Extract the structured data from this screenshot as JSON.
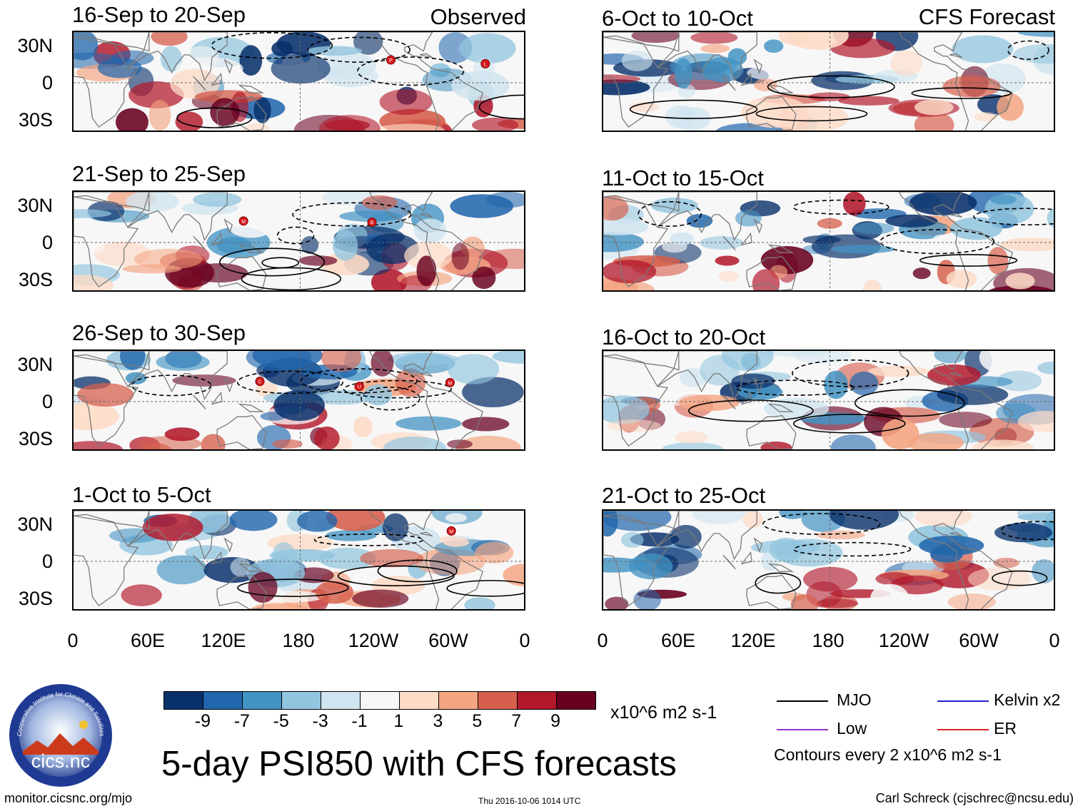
{
  "column_labels": {
    "observed": "Observed",
    "forecast": "CFS Forecast"
  },
  "observed_panels": [
    {
      "title": "16-Sep to 20-Sep",
      "cyclones": [
        {
          "letter": "P",
          "lon": -108,
          "lat": 18
        },
        {
          "letter": "L",
          "lon": -33,
          "lat": 15
        }
      ]
    },
    {
      "title": "21-Sep to 25-Sep",
      "cyclones": [
        {
          "letter": "M",
          "lon": 135,
          "lat": 17
        },
        {
          "letter": "R",
          "lon": -123,
          "lat": 16
        }
      ]
    },
    {
      "title": "26-Sep to 30-Sep",
      "cyclones": [
        {
          "letter": "C",
          "lon": 148,
          "lat": 16
        },
        {
          "letter": "U",
          "lon": -133,
          "lat": 12
        },
        {
          "letter": "M",
          "lon": -61,
          "lat": 15
        }
      ]
    },
    {
      "title": "1-Oct to 5-Oct",
      "cyclones": [
        {
          "letter": "M",
          "lon": -60,
          "lat": 24
        }
      ]
    }
  ],
  "forecast_panels": [
    {
      "title": "6-Oct to 10-Oct"
    },
    {
      "title": "11-Oct to 15-Oct"
    },
    {
      "title": "16-Oct to 20-Oct"
    },
    {
      "title": "21-Oct to 25-Oct"
    }
  ],
  "lat_ticks": [
    "30N",
    "0",
    "30S"
  ],
  "lon_ticks": [
    "0",
    "60E",
    "120E",
    "180",
    "120W",
    "60W",
    "0"
  ],
  "colorbar": {
    "colors": [
      "#08306b",
      "#2166ac",
      "#4393c3",
      "#92c5de",
      "#d1e5f0",
      "#f7f7f7",
      "#fddbc7",
      "#f4a582",
      "#d6604d",
      "#b2182b",
      "#67001f"
    ],
    "labels": [
      "-9",
      "-7",
      "-5",
      "-3",
      "-1",
      "1",
      "3",
      "5",
      "7",
      "9"
    ],
    "units": "x10^6 m2 s-1"
  },
  "legend": {
    "items": [
      {
        "label": "MJO",
        "color": "#000000"
      },
      {
        "label": "Kelvin x2",
        "color": "#2222cc"
      },
      {
        "label": "Low",
        "color": "#9933cc"
      },
      {
        "label": "ER",
        "color": "#dd2222"
      }
    ],
    "note": "Contours every 2 x10^6 m2 s-1"
  },
  "logo": {
    "text": "cics.nc",
    "ring_text": "Cooperative Institute for Climate and Satellites"
  },
  "main_title": "5-day PSI850 with CFS forecasts",
  "footer": {
    "left": "monitor.cicsnc.org/mjo",
    "center": "Thu 2016-10-06 1014 UTC",
    "right": "Carl Schreck (cjschrec@ncsu.edu)"
  }
}
